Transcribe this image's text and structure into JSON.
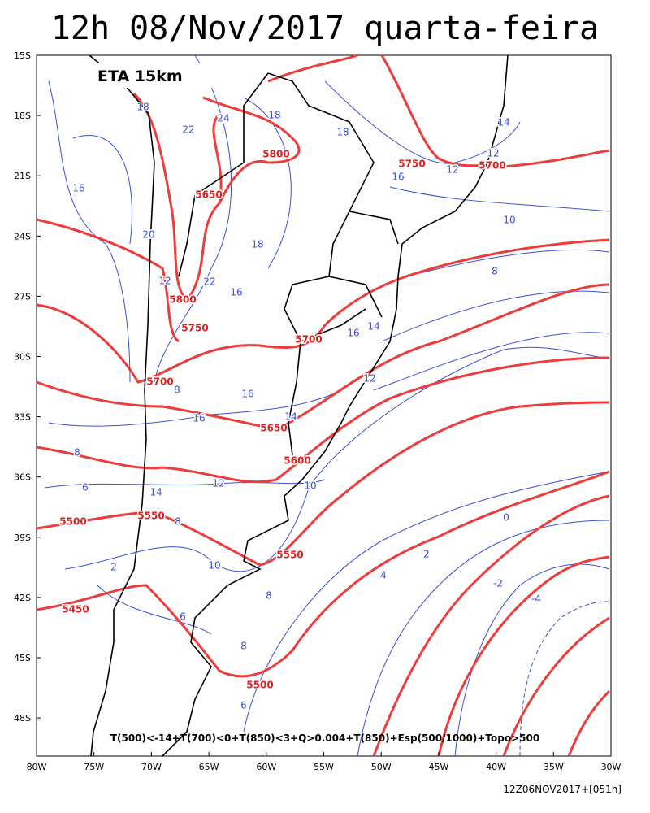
{
  "header": {
    "title": "12h 08/Nov/2017 quarta-feira",
    "model": "ETA 15km"
  },
  "map": {
    "lat_labels": [
      "15S",
      "18S",
      "21S",
      "24S",
      "27S",
      "30S",
      "33S",
      "36S",
      "39S",
      "42S",
      "45S",
      "48S"
    ],
    "lon_labels": [
      "80W",
      "75W",
      "70W",
      "65W",
      "60W",
      "55W",
      "50W",
      "45W",
      "40W",
      "35W",
      "30W"
    ],
    "height_labels": [
      5800,
      5750,
      5700,
      5650,
      5800,
      5750,
      5700,
      5700,
      5650,
      5600,
      5550,
      5500,
      5550,
      5450,
      5500
    ],
    "thickness_labels": [
      18,
      22,
      24,
      18,
      18,
      16,
      16,
      12,
      14,
      12,
      10,
      18,
      20,
      22,
      12,
      16,
      8,
      16,
      14,
      12,
      8,
      16,
      14,
      16,
      8,
      6,
      14,
      12,
      10,
      8,
      0,
      2,
      10,
      4,
      2,
      -2,
      -4,
      8,
      6,
      8,
      6
    ],
    "legend": "T(500)<-14+T(700)<0+T(850)<3+Q>0.004+T(850)+Esp(500/1000)+Topo>500"
  },
  "footer": {
    "run": "12Z06NOV2017+[051h]"
  }
}
